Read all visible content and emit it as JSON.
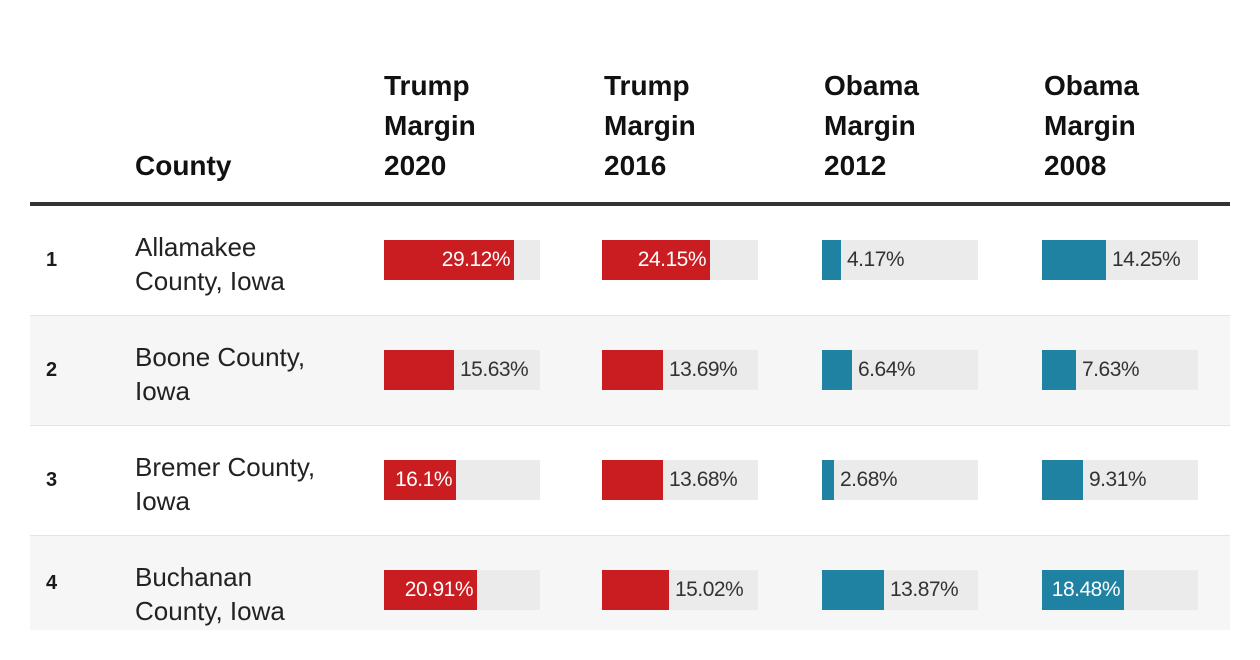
{
  "chart_data": {
    "type": "table",
    "title": "",
    "columns": [
      {
        "key": "rank",
        "label": ""
      },
      {
        "key": "county",
        "label": "County"
      },
      {
        "key": "trump2020",
        "label": "Trump\nMargin\n2020",
        "party": "republican"
      },
      {
        "key": "trump2016",
        "label": "Trump\nMargin\n2016",
        "party": "republican"
      },
      {
        "key": "obama2012",
        "label": "Obama\nMargin\n2012",
        "party": "democrat"
      },
      {
        "key": "obama2008",
        "label": "Obama\nMargin\n2008",
        "party": "democrat"
      }
    ],
    "bar_max": 35,
    "rows": [
      {
        "rank": "1",
        "county": "Allamakee County, Iowa",
        "trump2020": 29.12,
        "trump2016": 24.15,
        "obama2012": 4.17,
        "obama2008": 14.25
      },
      {
        "rank": "2",
        "county": "Boone County, Iowa",
        "trump2020": 15.63,
        "trump2016": 13.69,
        "obama2012": 6.64,
        "obama2008": 7.63
      },
      {
        "rank": "3",
        "county": "Bremer County, Iowa",
        "trump2020": 16.1,
        "trump2016": 13.68,
        "obama2012": 2.68,
        "obama2008": 9.31
      },
      {
        "rank": "4",
        "county": "Buchanan County, Iowa",
        "trump2020": 20.91,
        "trump2016": 15.02,
        "obama2012": 13.87,
        "obama2008": 18.48
      }
    ]
  },
  "colors": {
    "republican": "#c91d22",
    "democrat": "#1f82a3",
    "track": "#ebebeb"
  }
}
